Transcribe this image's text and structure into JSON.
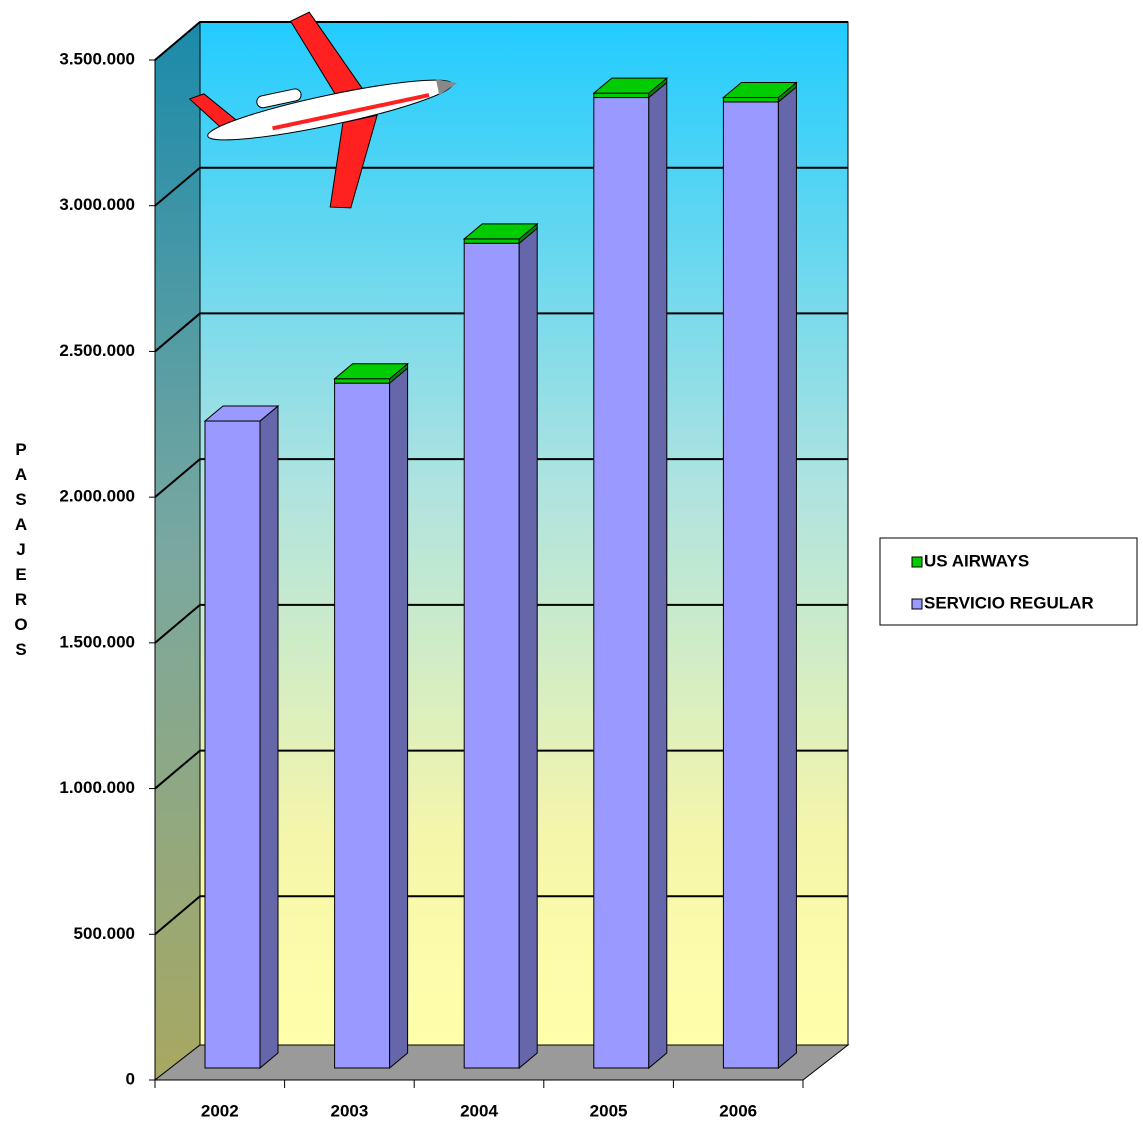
{
  "chart_data": {
    "type": "bar3d-stacked",
    "y_label": "PASAJEROS",
    "categories": [
      "2002",
      "2003",
      "2004",
      "2005",
      "2006"
    ],
    "series": [
      {
        "name": "SERVICIO REGULAR",
        "color": "#9999ff",
        "values": [
          2220000,
          2350000,
          2830000,
          3330000,
          3315000
        ]
      },
      {
        "name": "US AIRWAYS",
        "color": "#00cc00",
        "values": [
          0,
          15000,
          15000,
          15000,
          15000
        ]
      }
    ],
    "ylim": [
      0,
      3500000
    ],
    "yticks": [
      0,
      {
        "value": 500000,
        "label": "500.000"
      },
      {
        "value": 1000000,
        "label": "1.000.000"
      },
      {
        "value": 1500000,
        "label": "1.500.000"
      },
      {
        "value": 2000000,
        "label": "2.000.000"
      },
      {
        "value": 2500000,
        "label": "2.500.000"
      },
      {
        "value": 3000000,
        "label": "3.000.000"
      },
      {
        "value": 3500000,
        "label": "3.500.000"
      }
    ],
    "grid": true,
    "legend": "right"
  }
}
